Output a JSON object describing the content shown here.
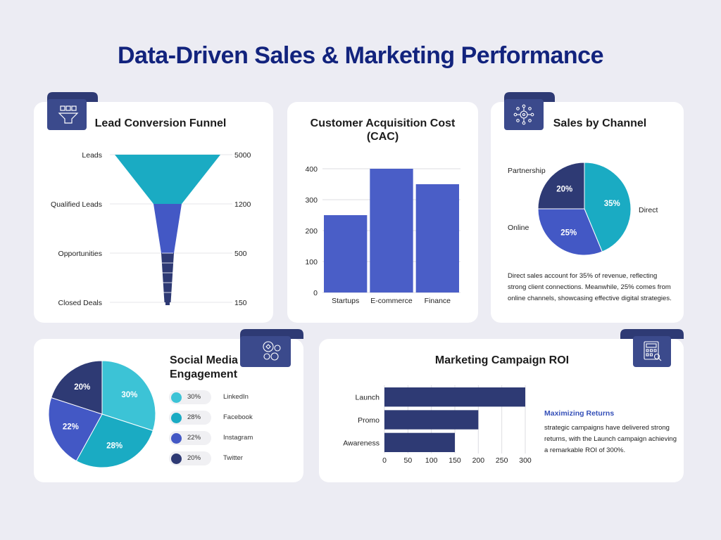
{
  "page_title": "Data-Driven Sales & Marketing Performance",
  "colors": {
    "title": "#12237d",
    "navy": "#2e3a74",
    "royal": "#4358c5",
    "teal": "#1aabc3",
    "teal_light": "#3cc3d6",
    "badge": "#3b4a8c"
  },
  "icons": {
    "funnel": "leads-team-icon",
    "channel": "network-icon",
    "social": "social-reactions-icon",
    "roi": "calculator-icon"
  },
  "funnel_card": {
    "title": "Lead Conversion Funnel"
  },
  "cac_card": {
    "title_line1": "Customer Acquisition Cost",
    "title_line2": "(CAC)"
  },
  "channel_card": {
    "title": "Sales by Channel",
    "description": [
      "Direct sales account for 35% of  revenue, reflecting",
      "strong client connections. Meanwhile, 25% comes from",
      "online channels, showcasing  effective digital strategies."
    ]
  },
  "social_card": {
    "title_line1": "Social Media",
    "title_line2": "Engagement"
  },
  "roi_card": {
    "title": "Marketing Campaign ROI",
    "note_heading": "Maximizing Returns",
    "note_lines": [
      "strategic campaigns have delivered strong",
      "returns, with the Launch campaign achieving",
      "a remarkable ROI of 300%."
    ]
  },
  "chart_data": [
    {
      "id": "funnel",
      "type": "funnel",
      "stages": [
        {
          "label": "Leads",
          "value": 5000,
          "value_label": "5000"
        },
        {
          "label": "Qualified Leads",
          "value": 1200,
          "value_label": "1200"
        },
        {
          "label": "Opportunities",
          "value": 500,
          "value_label": "500"
        },
        {
          "label": "Closed Deals",
          "value": 150,
          "value_label": "150"
        }
      ]
    },
    {
      "id": "cac",
      "type": "bar",
      "categories": [
        "Startups",
        "E-commerce",
        "Finance"
      ],
      "values": [
        250,
        400,
        350
      ],
      "ylim": [
        0,
        400
      ],
      "yticks": [
        "0",
        "100",
        "200",
        "300",
        "400"
      ],
      "grid": true
    },
    {
      "id": "channel",
      "type": "pie",
      "slices": [
        {
          "name": "Direct",
          "value": 35,
          "label": "35%"
        },
        {
          "name": "Online",
          "value": 25,
          "label": "25%"
        },
        {
          "name": "Partnership",
          "value": 20,
          "label": "20%"
        }
      ]
    },
    {
      "id": "social",
      "type": "pie",
      "slices": [
        {
          "name": "LinkedIn",
          "value": 30,
          "label": "30%"
        },
        {
          "name": "Facebook",
          "value": 28,
          "label": "28%"
        },
        {
          "name": "Instagram",
          "value": 22,
          "label": "22%"
        },
        {
          "name": "Twitter",
          "value": 20,
          "label": "20%"
        }
      ],
      "legend": "right"
    },
    {
      "id": "roi",
      "type": "bar",
      "orientation": "horizontal",
      "categories": [
        "Launch",
        "Promo",
        "Awareness"
      ],
      "values": [
        300,
        200,
        150
      ],
      "xlim": [
        0,
        300
      ],
      "xticks": [
        "0",
        "50",
        "100",
        "150",
        "200",
        "250",
        "300"
      ],
      "grid": true
    }
  ]
}
